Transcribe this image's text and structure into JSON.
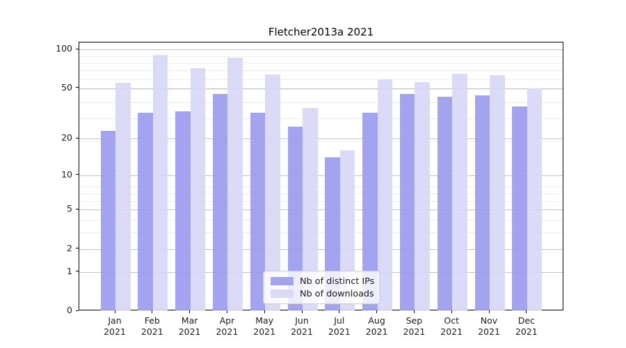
{
  "title": "Fletcher2013a 2021",
  "chart_data": {
    "type": "bar",
    "title": "Fletcher2013a 2021",
    "categories": [
      "Jan 2021",
      "Feb 2021",
      "Mar 2021",
      "Apr 2021",
      "May 2021",
      "Jun 2021",
      "Jul 2021",
      "Aug 2021",
      "Sep 2021",
      "Oct 2021",
      "Nov 2021",
      "Dec 2021"
    ],
    "series": [
      {
        "name": "Nb of distinct IPs",
        "color": "#9999ee",
        "values": [
          23,
          32,
          33,
          45,
          32,
          25,
          14,
          32,
          45,
          43,
          44,
          36
        ]
      },
      {
        "name": "Nb of downloads",
        "color": "#d7d7f7",
        "values": [
          55,
          91,
          72,
          86,
          64,
          35,
          16,
          59,
          56,
          65,
          63,
          50
        ]
      }
    ],
    "xlabel": "",
    "ylabel": "",
    "yscale": "log(1+x)",
    "yticks": [
      0,
      1,
      2,
      5,
      10,
      20,
      50,
      100
    ],
    "ylim": [
      0,
      113
    ],
    "grid": true,
    "legend_position": "lower center",
    "colors": {
      "distinct_ips": "#9999ee",
      "downloads": "#d7d7f7",
      "grid_major": "#c3c3c3",
      "grid_minor": "#ececec",
      "axis": "#000000"
    }
  }
}
